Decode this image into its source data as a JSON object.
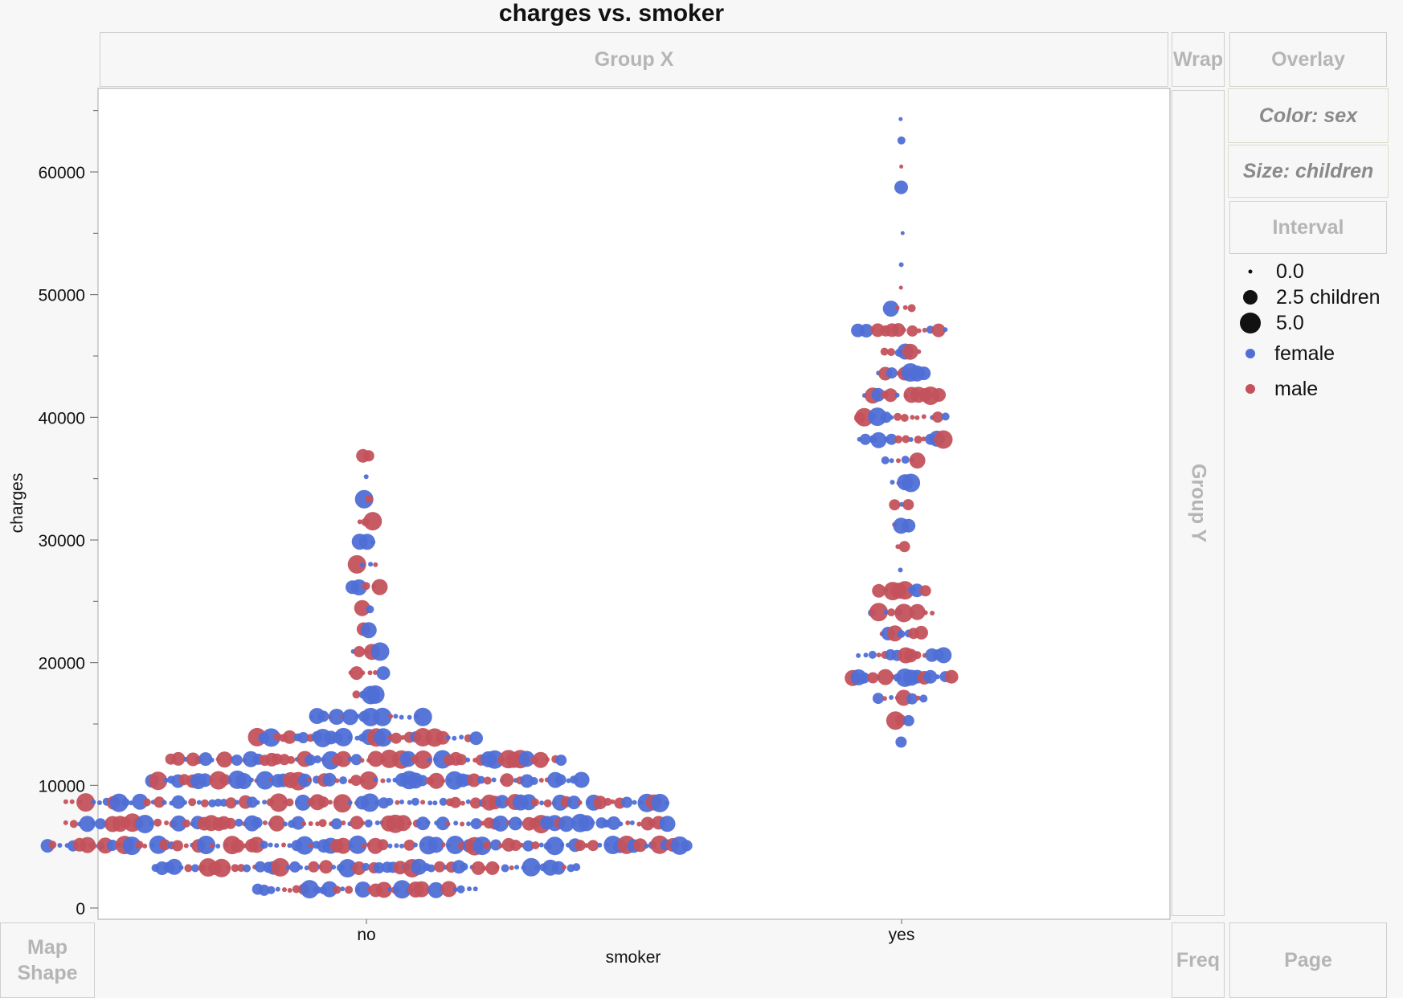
{
  "title": "charges vs. smoker",
  "zones": {
    "group_x": "Group X",
    "wrap": "Wrap",
    "overlay": "Overlay",
    "color": "Color: sex",
    "size": "Size: children",
    "interval": "Interval",
    "group_y": "Group Y",
    "map_shape_1": "Map",
    "map_shape_2": "Shape",
    "freq": "Freq",
    "page": "Page"
  },
  "legend": {
    "size_title": "children",
    "size_levels": [
      "0.0",
      "2.5",
      "5.0"
    ],
    "size_values": [
      0,
      2.5,
      5
    ],
    "color_items": [
      {
        "label": "female",
        "color": "#4f6fd6"
      },
      {
        "label": "male",
        "color": "#c4525c"
      }
    ]
  },
  "chart_data": {
    "type": "scatter",
    "title": "charges vs. smoker",
    "xlabel": "smoker",
    "ylabel": "charges",
    "categories": [
      "no",
      "yes"
    ],
    "ylim": [
      0,
      65000
    ],
    "yticks": [
      0,
      10000,
      20000,
      30000,
      40000,
      50000,
      60000
    ],
    "grid": false,
    "colors": {
      "female": "#4f6fd6",
      "male": "#c4525c"
    },
    "size_variable": "children",
    "color_variable": "sex",
    "bins": {
      "no": [
        {
          "charges": 1500,
          "count": 34
        },
        {
          "charges": 3300,
          "count": 65
        },
        {
          "charges": 5100,
          "count": 98
        },
        {
          "charges": 6900,
          "count": 92
        },
        {
          "charges": 8600,
          "count": 92
        },
        {
          "charges": 10400,
          "count": 66
        },
        {
          "charges": 12100,
          "count": 60
        },
        {
          "charges": 13900,
          "count": 34
        },
        {
          "charges": 15600,
          "count": 18
        },
        {
          "charges": 17400,
          "count": 4
        },
        {
          "charges": 19200,
          "count": 6
        },
        {
          "charges": 20900,
          "count": 5
        },
        {
          "charges": 22700,
          "count": 2
        },
        {
          "charges": 24400,
          "count": 2
        },
        {
          "charges": 26200,
          "count": 5
        },
        {
          "charges": 28000,
          "count": 4
        },
        {
          "charges": 29800,
          "count": 3
        },
        {
          "charges": 31500,
          "count": 3
        },
        {
          "charges": 33300,
          "count": 2
        },
        {
          "charges": 35100,
          "count": 1
        },
        {
          "charges": 36900,
          "count": 2
        }
      ],
      "yes": [
        {
          "charges": 13500,
          "count": 1
        },
        {
          "charges": 15300,
          "count": 3
        },
        {
          "charges": 17100,
          "count": 8
        },
        {
          "charges": 18800,
          "count": 16
        },
        {
          "charges": 20600,
          "count": 14
        },
        {
          "charges": 22400,
          "count": 7
        },
        {
          "charges": 24100,
          "count": 10
        },
        {
          "charges": 25900,
          "count": 8
        },
        {
          "charges": 27600,
          "count": 1
        },
        {
          "charges": 29400,
          "count": 2
        },
        {
          "charges": 31200,
          "count": 3
        },
        {
          "charges": 32900,
          "count": 3
        },
        {
          "charges": 34700,
          "count": 4
        },
        {
          "charges": 36500,
          "count": 6
        },
        {
          "charges": 38200,
          "count": 14
        },
        {
          "charges": 40000,
          "count": 14
        },
        {
          "charges": 41800,
          "count": 12
        },
        {
          "charges": 43600,
          "count": 8
        },
        {
          "charges": 45300,
          "count": 6
        },
        {
          "charges": 47100,
          "count": 14
        },
        {
          "charges": 48900,
          "count": 4
        },
        {
          "charges": 50600,
          "count": 1
        },
        {
          "charges": 52400,
          "count": 1
        },
        {
          "charges": 55000,
          "count": 1
        },
        {
          "charges": 58700,
          "count": 1
        },
        {
          "charges": 60400,
          "count": 1
        },
        {
          "charges": 62600,
          "count": 1
        },
        {
          "charges": 64300,
          "count": 1
        }
      ]
    }
  }
}
